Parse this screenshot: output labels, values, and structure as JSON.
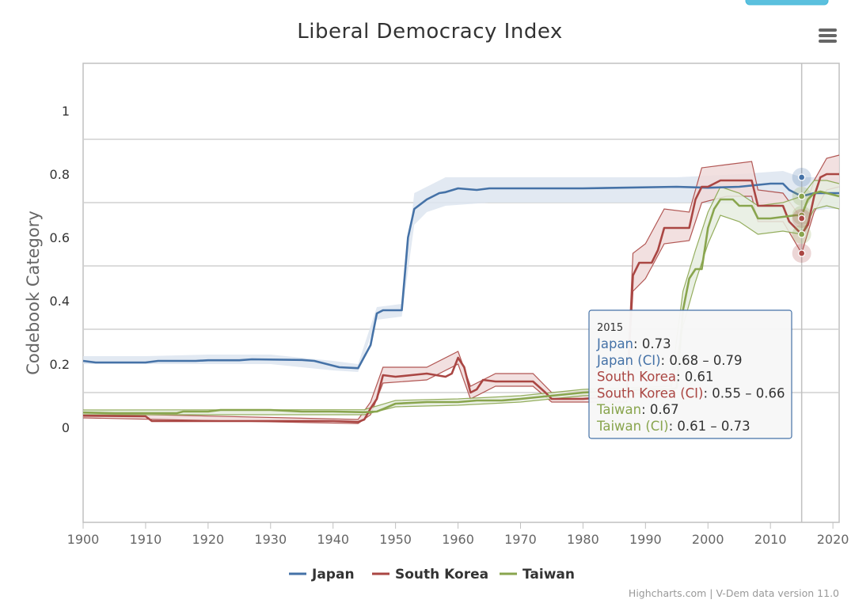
{
  "chart_data": {
    "type": "line",
    "title": "Liberal Democracy Index",
    "ylabel": "Codebook Category",
    "xlabel": "",
    "xlim": [
      1900,
      2021
    ],
    "ylim": [
      -0.3,
      1.15
    ],
    "x_ticks": [
      "1900",
      "1910",
      "1920",
      "1930",
      "1940",
      "1950",
      "1960",
      "1970",
      "1980",
      "1990",
      "2000",
      "2010",
      "2020"
    ],
    "y_ticks": [
      {
        "value": 0,
        "label": "0"
      },
      {
        "value": 0.2,
        "label": "0.2"
      },
      {
        "value": 0.4,
        "label": "0.4"
      },
      {
        "value": 0.6,
        "label": "0.6"
      },
      {
        "value": 0.8,
        "label": "0.8"
      },
      {
        "value": 1,
        "label": "1"
      }
    ],
    "grid_values": [
      0.11,
      0.31,
      0.51,
      0.71,
      0.91
    ],
    "grid": true,
    "legend_position": "bottom-center",
    "series": [
      {
        "name": "Japan",
        "color": "#4572A7",
        "band_color": "#dde5f0",
        "points": [
          [
            1900,
            0.21
          ],
          [
            1902,
            0.205
          ],
          [
            1910,
            0.205
          ],
          [
            1912,
            0.21
          ],
          [
            1918,
            0.21
          ],
          [
            1920,
            0.212
          ],
          [
            1925,
            0.212
          ],
          [
            1927,
            0.215
          ],
          [
            1935,
            0.213
          ],
          [
            1937,
            0.21
          ],
          [
            1939,
            0.2
          ],
          [
            1941,
            0.19
          ],
          [
            1944,
            0.187
          ],
          [
            1946,
            0.26
          ],
          [
            1947,
            0.36
          ],
          [
            1948,
            0.37
          ],
          [
            1951,
            0.37
          ],
          [
            1952,
            0.6
          ],
          [
            1953,
            0.69
          ],
          [
            1955,
            0.72
          ],
          [
            1957,
            0.74
          ],
          [
            1958,
            0.743
          ],
          [
            1960,
            0.755
          ],
          [
            1963,
            0.75
          ],
          [
            1965,
            0.755
          ],
          [
            1980,
            0.755
          ],
          [
            1995,
            0.76
          ],
          [
            2000,
            0.757
          ],
          [
            2005,
            0.76
          ],
          [
            2010,
            0.77
          ],
          [
            2012,
            0.77
          ],
          [
            2013,
            0.75
          ],
          [
            2015,
            0.73
          ],
          [
            2017,
            0.74
          ],
          [
            2019,
            0.74
          ],
          [
            2021,
            0.74
          ]
        ],
        "ci": [
          [
            1900,
            0.2,
            0.225
          ],
          [
            1910,
            0.2,
            0.225
          ],
          [
            1920,
            0.2,
            0.23
          ],
          [
            1930,
            0.2,
            0.23
          ],
          [
            1940,
            0.18,
            0.21
          ],
          [
            1944,
            0.175,
            0.2
          ],
          [
            1947,
            0.34,
            0.38
          ],
          [
            1951,
            0.35,
            0.39
          ],
          [
            1953,
            0.64,
            0.74
          ],
          [
            1955,
            0.68,
            0.76
          ],
          [
            1958,
            0.7,
            0.79
          ],
          [
            1965,
            0.71,
            0.79
          ],
          [
            1980,
            0.71,
            0.79
          ],
          [
            1995,
            0.71,
            0.79
          ],
          [
            2005,
            0.71,
            0.8
          ],
          [
            2012,
            0.72,
            0.81
          ],
          [
            2015,
            0.68,
            0.79
          ],
          [
            2019,
            0.69,
            0.79
          ],
          [
            2021,
            0.69,
            0.79
          ]
        ]
      },
      {
        "name": "South Korea",
        "color": "#AA4643",
        "band_color": "#f0dada",
        "points": [
          [
            1900,
            0.037
          ],
          [
            1910,
            0.035
          ],
          [
            1911,
            0.02
          ],
          [
            1940,
            0.02
          ],
          [
            1944,
            0.017
          ],
          [
            1945,
            0.025
          ],
          [
            1946,
            0.06
          ],
          [
            1947,
            0.09
          ],
          [
            1948,
            0.165
          ],
          [
            1950,
            0.16
          ],
          [
            1955,
            0.17
          ],
          [
            1958,
            0.16
          ],
          [
            1959,
            0.17
          ],
          [
            1960,
            0.22
          ],
          [
            1961,
            0.19
          ],
          [
            1962,
            0.11
          ],
          [
            1963,
            0.12
          ],
          [
            1964,
            0.15
          ],
          [
            1966,
            0.145
          ],
          [
            1972,
            0.145
          ],
          [
            1974,
            0.11
          ],
          [
            1975,
            0.09
          ],
          [
            1980,
            0.09
          ],
          [
            1987,
            0.1
          ],
          [
            1988,
            0.48
          ],
          [
            1989,
            0.52
          ],
          [
            1991,
            0.52
          ],
          [
            1992,
            0.56
          ],
          [
            1993,
            0.63
          ],
          [
            1995,
            0.63
          ],
          [
            1997,
            0.63
          ],
          [
            1998,
            0.72
          ],
          [
            1999,
            0.76
          ],
          [
            2000,
            0.76
          ],
          [
            2002,
            0.78
          ],
          [
            2005,
            0.78
          ],
          [
            2007,
            0.78
          ],
          [
            2008,
            0.7
          ],
          [
            2012,
            0.7
          ],
          [
            2013,
            0.65
          ],
          [
            2015,
            0.61
          ],
          [
            2016,
            0.64
          ],
          [
            2017,
            0.73
          ],
          [
            2018,
            0.79
          ],
          [
            2019,
            0.8
          ],
          [
            2021,
            0.8
          ]
        ],
        "ci": [
          [
            1900,
            0.03,
            0.045
          ],
          [
            1944,
            0.012,
            0.025
          ],
          [
            1946,
            0.04,
            0.08
          ],
          [
            1948,
            0.14,
            0.19
          ],
          [
            1955,
            0.15,
            0.19
          ],
          [
            1960,
            0.2,
            0.24
          ],
          [
            1962,
            0.09,
            0.13
          ],
          [
            1966,
            0.13,
            0.17
          ],
          [
            1972,
            0.13,
            0.17
          ],
          [
            1975,
            0.08,
            0.11
          ],
          [
            1987,
            0.08,
            0.12
          ],
          [
            1988,
            0.43,
            0.55
          ],
          [
            1990,
            0.47,
            0.58
          ],
          [
            1993,
            0.58,
            0.69
          ],
          [
            1997,
            0.59,
            0.68
          ],
          [
            1999,
            0.71,
            0.82
          ],
          [
            2003,
            0.73,
            0.83
          ],
          [
            2007,
            0.73,
            0.84
          ],
          [
            2008,
            0.65,
            0.75
          ],
          [
            2012,
            0.65,
            0.74
          ],
          [
            2015,
            0.55,
            0.66
          ],
          [
            2017,
            0.68,
            0.78
          ],
          [
            2019,
            0.75,
            0.85
          ],
          [
            2021,
            0.76,
            0.86
          ]
        ]
      },
      {
        "name": "Taiwan",
        "color": "#89A54E",
        "band_color": "#e6ede0",
        "points": [
          [
            1900,
            0.047
          ],
          [
            1905,
            0.045
          ],
          [
            1910,
            0.045
          ],
          [
            1915,
            0.045
          ],
          [
            1916,
            0.05
          ],
          [
            1918,
            0.05
          ],
          [
            1920,
            0.05
          ],
          [
            1922,
            0.055
          ],
          [
            1925,
            0.055
          ],
          [
            1930,
            0.055
          ],
          [
            1935,
            0.05
          ],
          [
            1940,
            0.05
          ],
          [
            1945,
            0.048
          ],
          [
            1947,
            0.05
          ],
          [
            1948,
            0.058
          ],
          [
            1950,
            0.075
          ],
          [
            1955,
            0.08
          ],
          [
            1960,
            0.08
          ],
          [
            1963,
            0.085
          ],
          [
            1967,
            0.085
          ],
          [
            1970,
            0.09
          ],
          [
            1975,
            0.1
          ],
          [
            1980,
            0.11
          ],
          [
            1985,
            0.115
          ],
          [
            1990,
            0.12
          ],
          [
            1994,
            0.12
          ],
          [
            1995,
            0.125
          ],
          [
            1996,
            0.37
          ],
          [
            1997,
            0.47
          ],
          [
            1998,
            0.5
          ],
          [
            1999,
            0.5
          ],
          [
            2000,
            0.63
          ],
          [
            2001,
            0.69
          ],
          [
            2002,
            0.72
          ],
          [
            2004,
            0.72
          ],
          [
            2005,
            0.7
          ],
          [
            2006,
            0.7
          ],
          [
            2007,
            0.7
          ],
          [
            2008,
            0.66
          ],
          [
            2010,
            0.66
          ],
          [
            2014,
            0.67
          ],
          [
            2015,
            0.67
          ],
          [
            2016,
            0.72
          ],
          [
            2017,
            0.74
          ],
          [
            2018,
            0.745
          ],
          [
            2019,
            0.74
          ],
          [
            2021,
            0.73
          ]
        ],
        "ci": [
          [
            1900,
            0.04,
            0.055
          ],
          [
            1945,
            0.04,
            0.056
          ],
          [
            1950,
            0.065,
            0.085
          ],
          [
            1960,
            0.07,
            0.09
          ],
          [
            1970,
            0.08,
            0.1
          ],
          [
            1980,
            0.1,
            0.12
          ],
          [
            1994,
            0.11,
            0.13
          ],
          [
            1996,
            0.32,
            0.43
          ],
          [
            1998,
            0.46,
            0.56
          ],
          [
            2000,
            0.58,
            0.68
          ],
          [
            2002,
            0.67,
            0.76
          ],
          [
            2005,
            0.65,
            0.74
          ],
          [
            2008,
            0.61,
            0.7
          ],
          [
            2012,
            0.62,
            0.71
          ],
          [
            2015,
            0.61,
            0.73
          ],
          [
            2017,
            0.69,
            0.78
          ],
          [
            2019,
            0.7,
            0.78
          ],
          [
            2021,
            0.69,
            0.77
          ]
        ]
      }
    ],
    "tooltip": {
      "x": 2015,
      "header": "2015",
      "rows": [
        {
          "label": "Japan",
          "value": "0.73",
          "color": "#4572A7"
        },
        {
          "label": "Japan (CI)",
          "value": "0.68 – 0.79",
          "color": "#4572A7"
        },
        {
          "label": "South Korea",
          "value": "0.61",
          "color": "#AA4643"
        },
        {
          "label": "South Korea (CI)",
          "value": "0.55 – 0.66",
          "color": "#AA4643"
        },
        {
          "label": "Taiwan",
          "value": "0.67",
          "color": "#89A54E"
        },
        {
          "label": "Taiwan (CI)",
          "value": "0.61 – 0.73",
          "color": "#89A54E"
        }
      ]
    },
    "hover_markers": [
      {
        "series": "Japan",
        "value": 0.79
      },
      {
        "series": "Taiwan",
        "value": 0.73
      },
      {
        "series": "Taiwan",
        "value": 0.67
      },
      {
        "series": "South Korea",
        "value": 0.66
      },
      {
        "series": "Taiwan",
        "value": 0.61
      },
      {
        "series": "South Korea",
        "value": 0.55
      }
    ]
  },
  "credits": "Highcharts.com | V-Dem data version 11.0",
  "menu_icon": "hamburger-menu-icon"
}
